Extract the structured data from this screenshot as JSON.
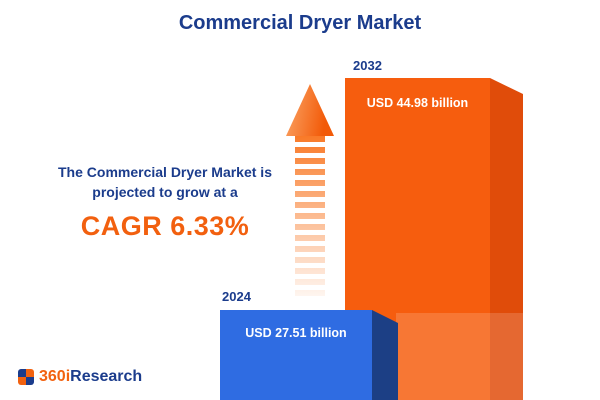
{
  "title": "Commercial Dryer Market",
  "description": {
    "line1": "The Commercial Dryer Market is",
    "line2": "projected to grow at a",
    "cagr_label": "CAGR 6.33%"
  },
  "chart_data": {
    "type": "bar",
    "title": "Commercial Dryer Market",
    "categories": [
      "2024",
      "2032"
    ],
    "values": [
      27.51,
      44.98
    ],
    "unit": "USD billion",
    "value_labels": [
      "USD 27.51 billion",
      "USD 44.98 billion"
    ],
    "cagr_percent": 6.33,
    "bar_colors": [
      "#2f6ce2",
      "#f65d0e"
    ],
    "ylim": [
      0,
      50
    ],
    "grid": false,
    "legend": "none"
  },
  "logo": {
    "text_orange": "360i",
    "text_navy": "Research"
  },
  "colors": {
    "navy": "#1b3c8c",
    "orange": "#f2600f",
    "bar_blue": "#2f6ce2",
    "bar_blue_side": "#1c3f85",
    "bar_orange": "#f65d0e",
    "bar_orange_side": "#e04c0a"
  }
}
